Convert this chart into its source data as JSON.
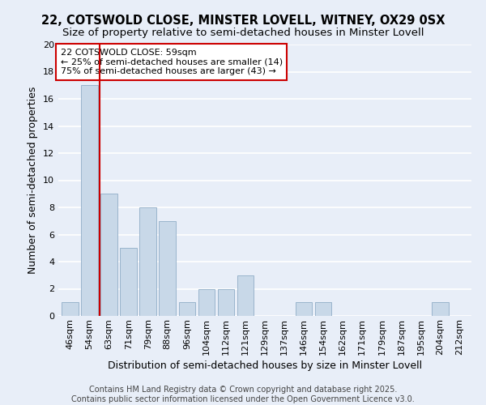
{
  "title_line1": "22, COTSWOLD CLOSE, MINSTER LOVELL, WITNEY, OX29 0SX",
  "title_line2": "Size of property relative to semi-detached houses in Minster Lovell",
  "xlabel": "Distribution of semi-detached houses by size in Minster Lovell",
  "ylabel": "Number of semi-detached properties",
  "categories": [
    "46sqm",
    "54sqm",
    "63sqm",
    "71sqm",
    "79sqm",
    "88sqm",
    "96sqm",
    "104sqm",
    "112sqm",
    "121sqm",
    "129sqm",
    "137sqm",
    "146sqm",
    "154sqm",
    "162sqm",
    "171sqm",
    "179sqm",
    "187sqm",
    "195sqm",
    "204sqm",
    "212sqm"
  ],
  "values": [
    1,
    17,
    9,
    5,
    8,
    7,
    1,
    2,
    2,
    3,
    0,
    0,
    1,
    1,
    0,
    0,
    0,
    0,
    0,
    1,
    0
  ],
  "bar_color": "#c8d8e8",
  "bar_edge_color": "#9ab4cc",
  "annotation_title": "22 COTSWOLD CLOSE: 59sqm",
  "annotation_line1": "← 25% of semi-detached houses are smaller (14)",
  "annotation_line2": "75% of semi-detached houses are larger (43) →",
  "annotation_box_color": "#ffffff",
  "annotation_box_edge": "#cc0000",
  "vline_color": "#cc0000",
  "vline_x": 1.5,
  "ylim": [
    0,
    20
  ],
  "yticks": [
    0,
    2,
    4,
    6,
    8,
    10,
    12,
    14,
    16,
    18,
    20
  ],
  "footer_line1": "Contains HM Land Registry data © Crown copyright and database right 2025.",
  "footer_line2": "Contains public sector information licensed under the Open Government Licence v3.0.",
  "bg_color": "#e8eef8",
  "grid_color": "#ffffff",
  "title_fontsize": 10.5,
  "subtitle_fontsize": 9.5,
  "axis_label_fontsize": 9,
  "tick_fontsize": 8,
  "annotation_fontsize": 8,
  "footer_fontsize": 7
}
